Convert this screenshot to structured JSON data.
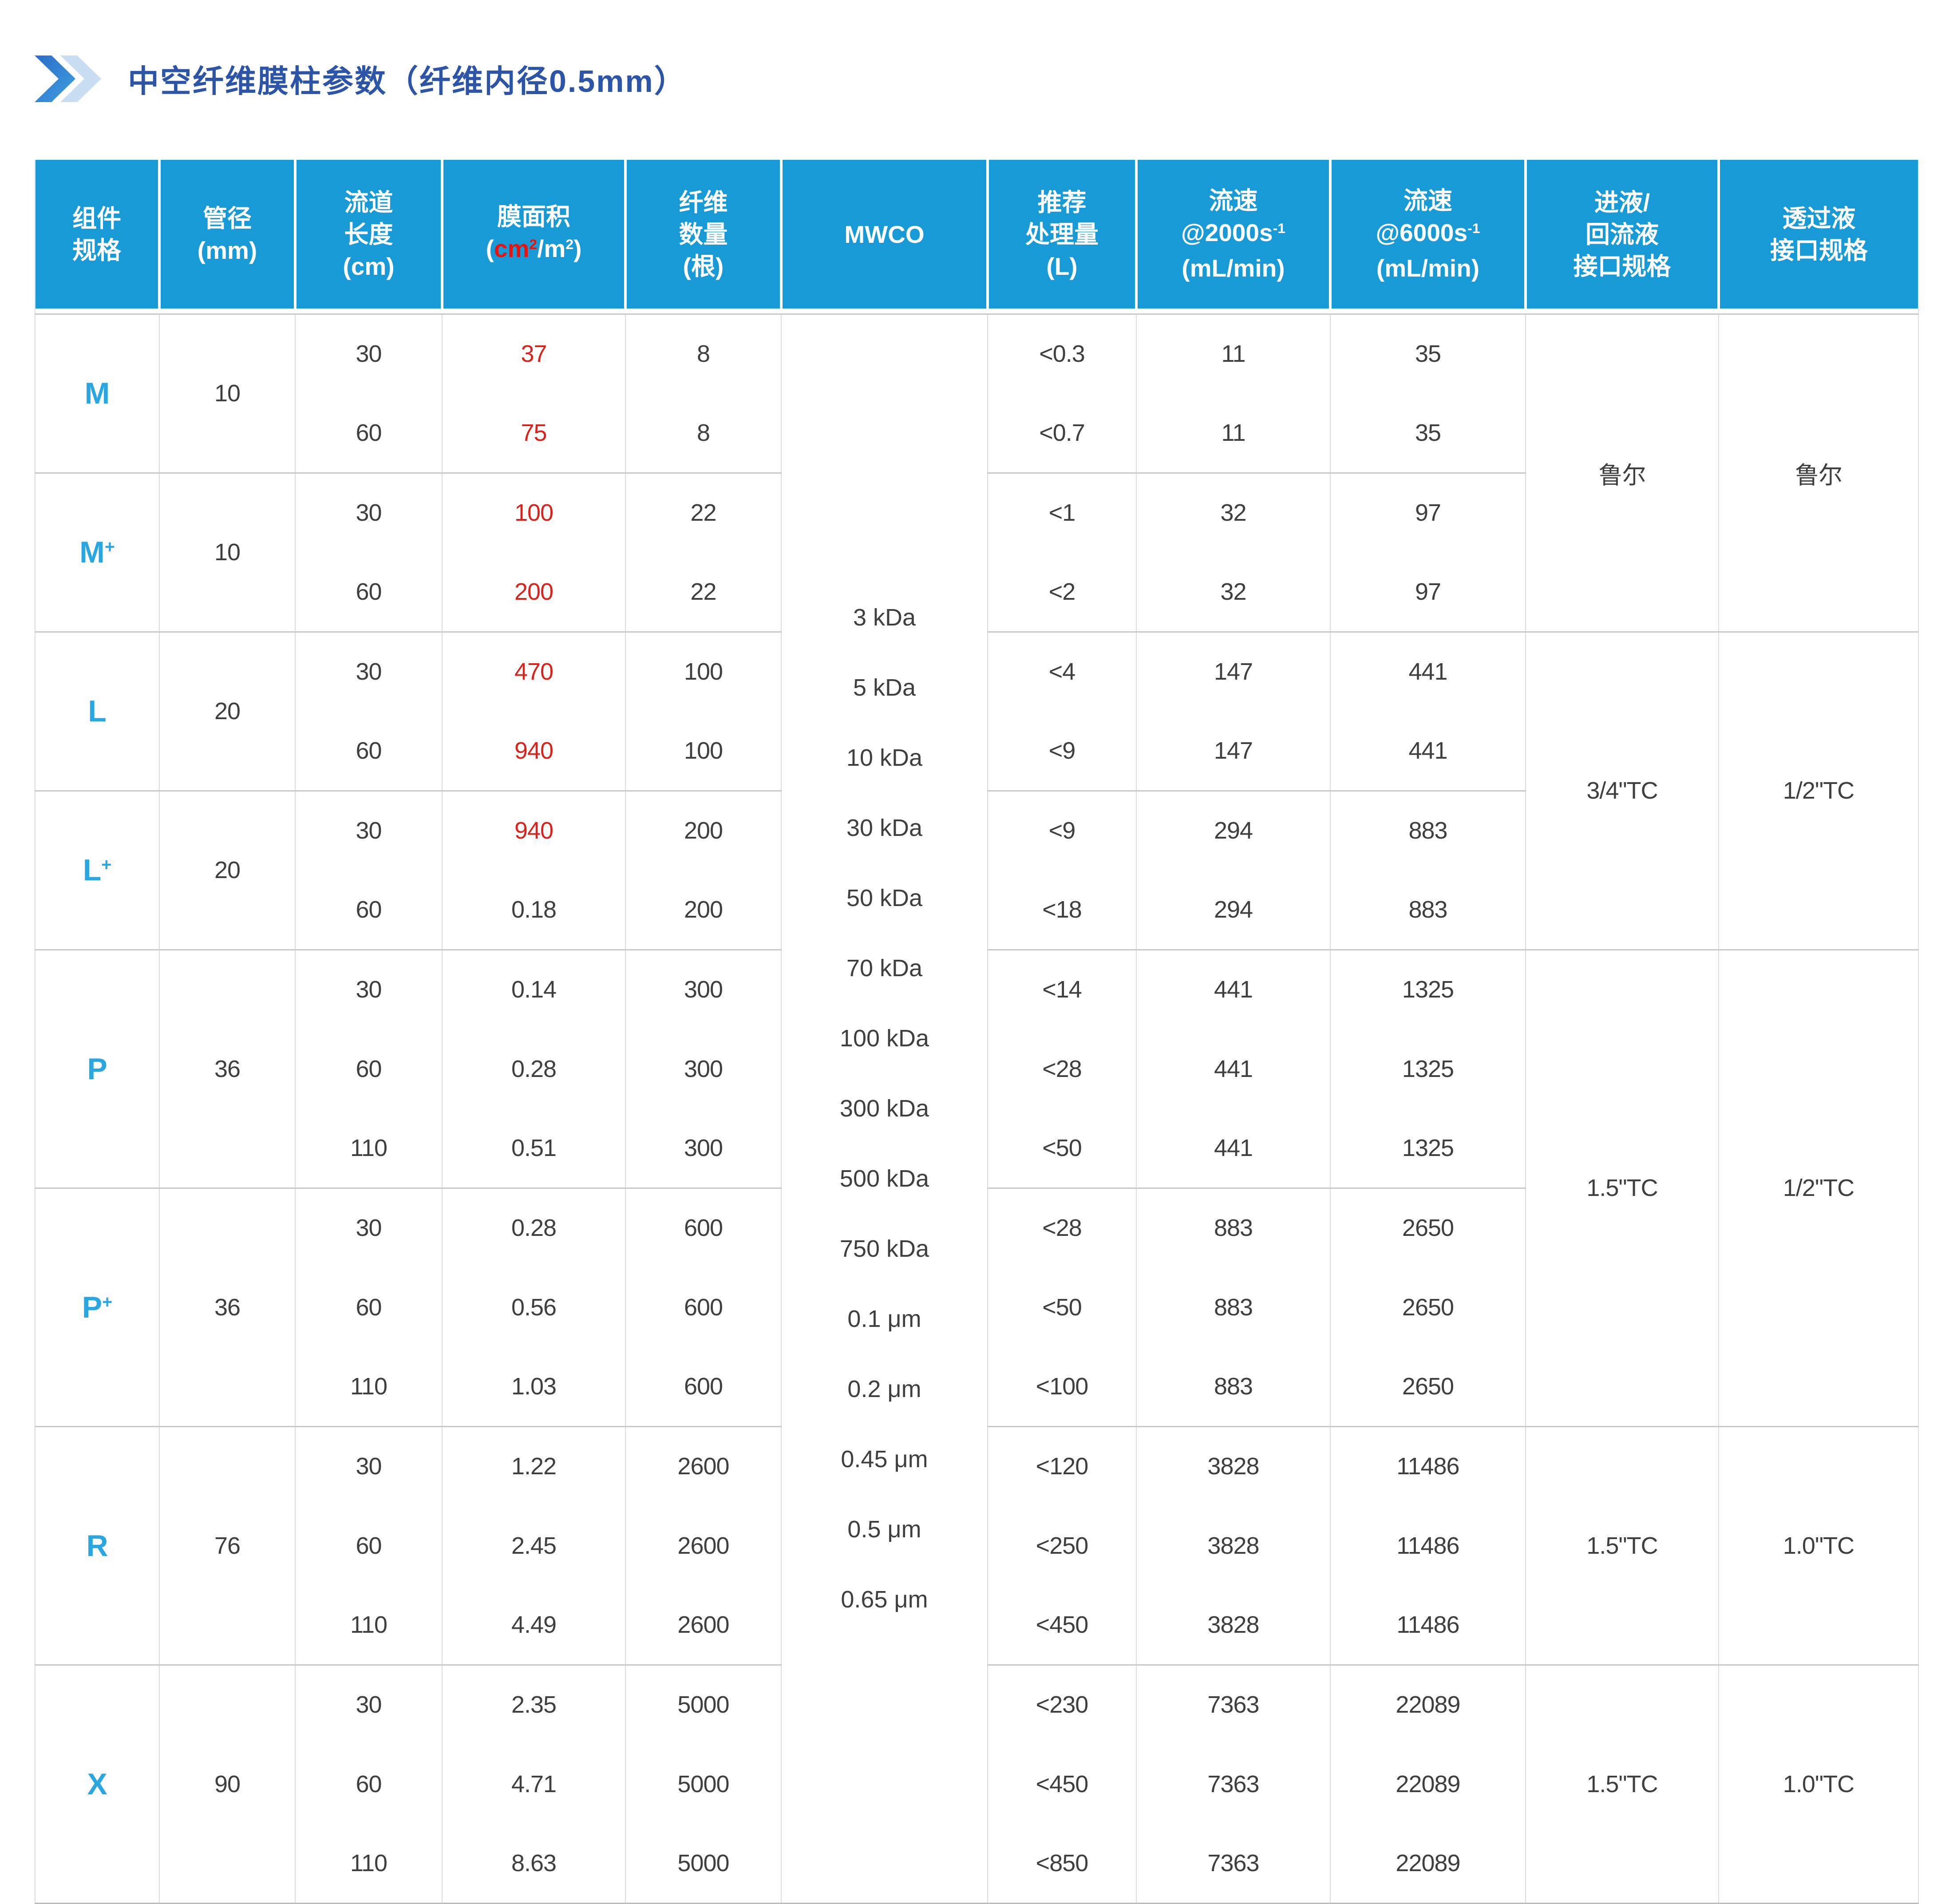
{
  "page": {
    "title": "中空纤维膜柱参数（纤维内径0.5mm）"
  },
  "icons": {
    "title_marker": "double-chevron-icon"
  },
  "colors": {
    "header_bg": "#189ad7",
    "spec_blue": "#2aa7e1",
    "title_blue": "#2d55a7",
    "red_accent": "#d9231d",
    "header_red": "#e21512",
    "chevron_dark": "#2b6cc8",
    "chevron_light": "#c9def3"
  },
  "table": {
    "headers": {
      "spec": [
        "组件",
        "规格"
      ],
      "dia": [
        "管径",
        "(mm)"
      ],
      "len": [
        "流道",
        "长度",
        "(cm)"
      ],
      "area_title": "膜面积",
      "area_open": "(",
      "area_red_base": "cm",
      "area_red_sup": "2",
      "area_rest_base": "/m",
      "area_rest_sup": "2",
      "area_close": ")",
      "fib": [
        "纤维",
        "数量",
        "(根)"
      ],
      "mwco": "MWCO",
      "vol": [
        "推荐",
        "处理量",
        "(L)"
      ],
      "f2_l1": "流速",
      "f2_base": "@2000s",
      "f2_sup": "-1",
      "f2_l3": "(mL/min)",
      "f6_l1": "流速",
      "f6_base": "@6000s",
      "f6_sup": "-1",
      "f6_l3": "(mL/min)",
      "inlet": [
        "进液/",
        "回流液",
        "接口规格"
      ],
      "permeate": [
        "透过液",
        "接口规格"
      ]
    },
    "mwco_items": [
      "3 kDa",
      "5 kDa",
      "10 kDa",
      "30 kDa",
      "50 kDa",
      "70 kDa",
      "100 kDa",
      "300 kDa",
      "500 kDa",
      "750 kDa",
      "0.1 μm",
      "0.2 μm",
      "0.45 μm",
      "0.5 μm",
      "0.65 μm"
    ],
    "groups": [
      {
        "spec": "M",
        "sup": "",
        "dia": "10",
        "iface": {
          "span": 4,
          "inlet": "鲁尔",
          "permeate": "鲁尔"
        },
        "rows": [
          {
            "len": "30",
            "area": "37",
            "red": true,
            "fib": "8",
            "vol": "<0.3",
            "f2": "11",
            "f6": "35"
          },
          {
            "len": "60",
            "area": "75",
            "red": true,
            "fib": "8",
            "vol": "<0.7",
            "f2": "11",
            "f6": "35"
          }
        ]
      },
      {
        "spec": "M",
        "sup": "+",
        "dia": "10",
        "rows": [
          {
            "len": "30",
            "area": "100",
            "red": true,
            "fib": "22",
            "vol": "<1",
            "f2": "32",
            "f6": "97"
          },
          {
            "len": "60",
            "area": "200",
            "red": true,
            "fib": "22",
            "vol": "<2",
            "f2": "32",
            "f6": "97"
          }
        ]
      },
      {
        "spec": "L",
        "sup": "",
        "dia": "20",
        "iface": {
          "span": 4,
          "inlet": "3/4\"TC",
          "permeate": "1/2\"TC"
        },
        "rows": [
          {
            "len": "30",
            "area": "470",
            "red": true,
            "fib": "100",
            "vol": "<4",
            "f2": "147",
            "f6": "441"
          },
          {
            "len": "60",
            "area": "940",
            "red": true,
            "fib": "100",
            "vol": "<9",
            "f2": "147",
            "f6": "441"
          }
        ]
      },
      {
        "spec": "L",
        "sup": "+",
        "dia": "20",
        "rows": [
          {
            "len": "30",
            "area": "940",
            "red": true,
            "fib": "200",
            "vol": "<9",
            "f2": "294",
            "f6": "883"
          },
          {
            "len": "60",
            "area": "0.18",
            "red": false,
            "fib": "200",
            "vol": "<18",
            "f2": "294",
            "f6": "883"
          }
        ]
      },
      {
        "spec": "P",
        "sup": "",
        "dia": "36",
        "iface": {
          "span": 6,
          "inlet": "1.5\"TC",
          "permeate": "1/2\"TC"
        },
        "rows": [
          {
            "len": "30",
            "area": "0.14",
            "red": false,
            "fib": "300",
            "vol": "<14",
            "f2": "441",
            "f6": "1325"
          },
          {
            "len": "60",
            "area": "0.28",
            "red": false,
            "fib": "300",
            "vol": "<28",
            "f2": "441",
            "f6": "1325"
          },
          {
            "len": "110",
            "area": "0.51",
            "red": false,
            "fib": "300",
            "vol": "<50",
            "f2": "441",
            "f6": "1325"
          }
        ]
      },
      {
        "spec": "P",
        "sup": "+",
        "dia": "36",
        "rows": [
          {
            "len": "30",
            "area": "0.28",
            "red": false,
            "fib": "600",
            "vol": "<28",
            "f2": "883",
            "f6": "2650"
          },
          {
            "len": "60",
            "area": "0.56",
            "red": false,
            "fib": "600",
            "vol": "<50",
            "f2": "883",
            "f6": "2650"
          },
          {
            "len": "110",
            "area": "1.03",
            "red": false,
            "fib": "600",
            "vol": "<100",
            "f2": "883",
            "f6": "2650"
          }
        ]
      },
      {
        "spec": "R",
        "sup": "",
        "dia": "76",
        "iface": {
          "span": 3,
          "inlet": "1.5\"TC",
          "permeate": "1.0\"TC"
        },
        "rows": [
          {
            "len": "30",
            "area": "1.22",
            "red": false,
            "fib": "2600",
            "vol": "<120",
            "f2": "3828",
            "f6": "11486"
          },
          {
            "len": "60",
            "area": "2.45",
            "red": false,
            "fib": "2600",
            "vol": "<250",
            "f2": "3828",
            "f6": "11486"
          },
          {
            "len": "110",
            "area": "4.49",
            "red": false,
            "fib": "2600",
            "vol": "<450",
            "f2": "3828",
            "f6": "11486"
          }
        ]
      },
      {
        "spec": "X",
        "sup": "",
        "dia": "90",
        "iface": {
          "span": 3,
          "inlet": "1.5\"TC",
          "permeate": "1.0\"TC"
        },
        "rows": [
          {
            "len": "30",
            "area": "2.35",
            "red": false,
            "fib": "5000",
            "vol": "<230",
            "f2": "7363",
            "f6": "22089"
          },
          {
            "len": "60",
            "area": "4.71",
            "red": false,
            "fib": "5000",
            "vol": "<450",
            "f2": "7363",
            "f6": "22089"
          },
          {
            "len": "110",
            "area": "8.63",
            "red": false,
            "fib": "5000",
            "vol": "<850",
            "f2": "7363",
            "f6": "22089"
          }
        ]
      }
    ]
  }
}
